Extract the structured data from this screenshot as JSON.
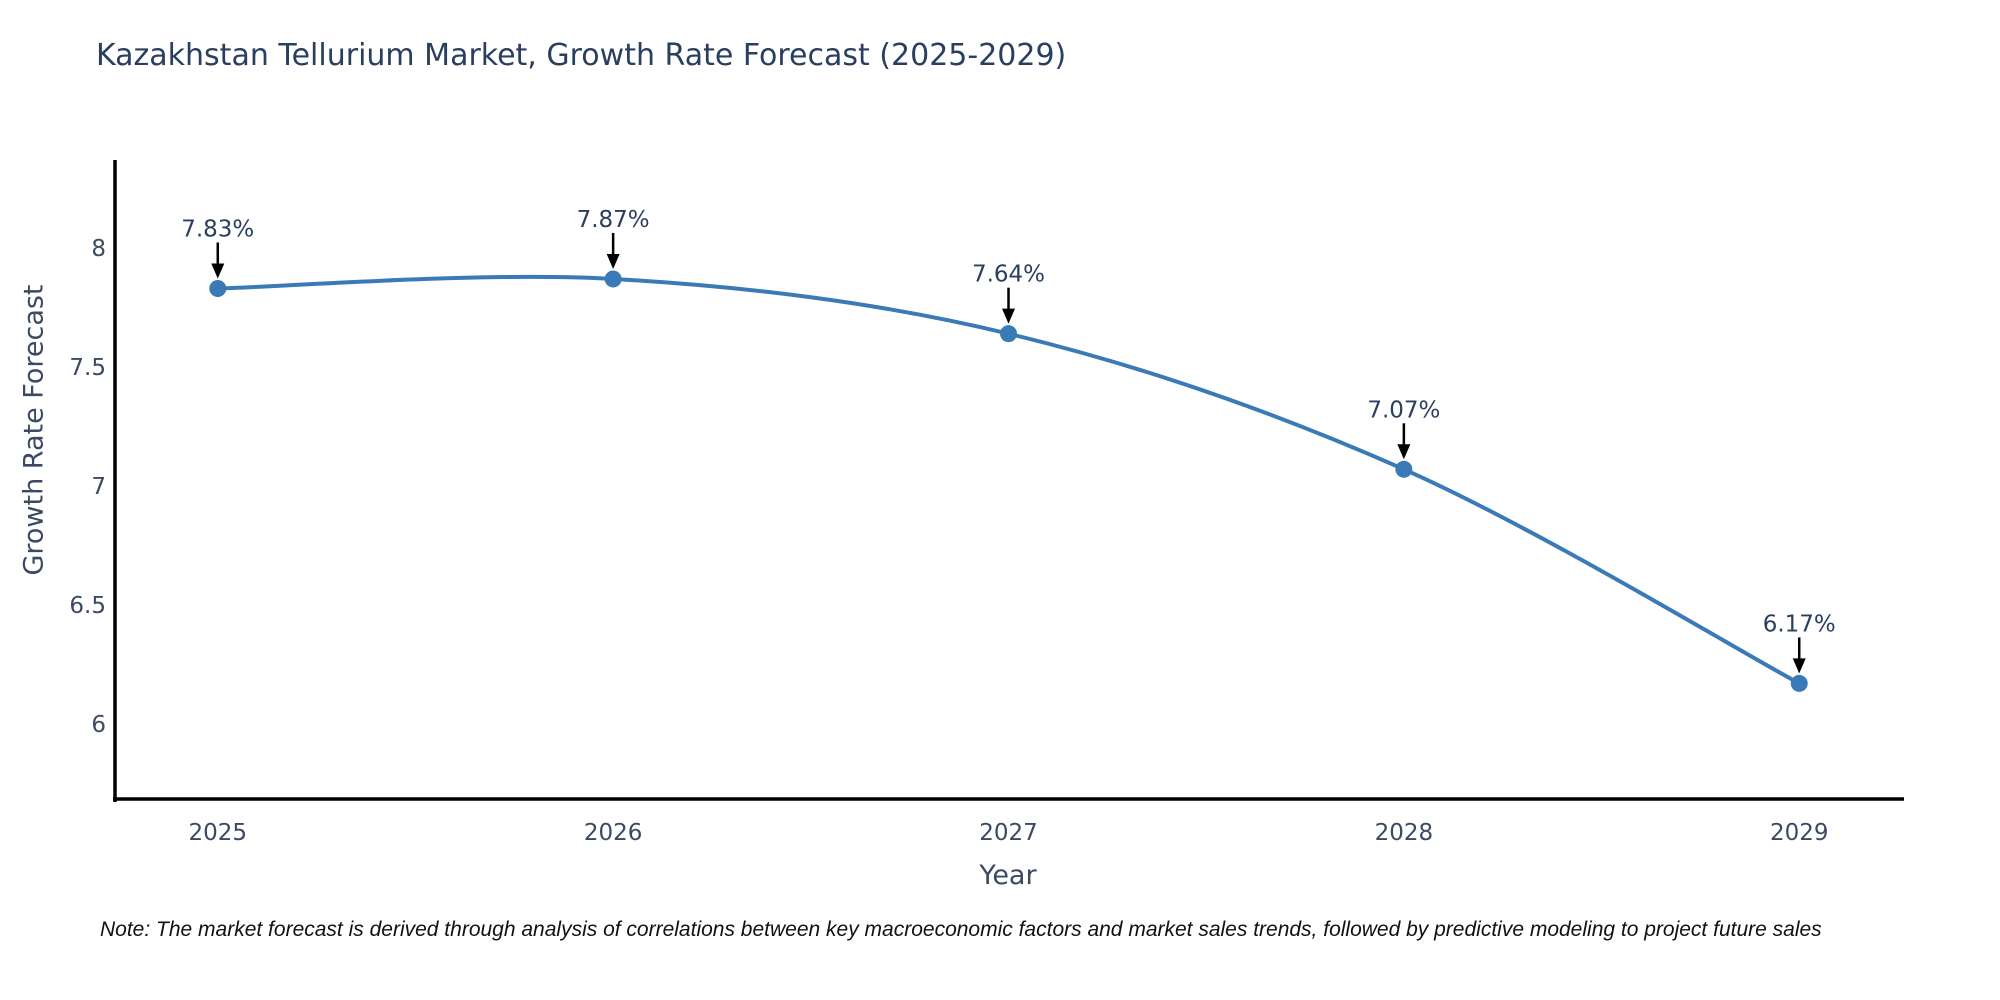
{
  "chart": {
    "title": "Kazakhstan Tellurium Market, Growth Rate Forecast (2025-2029)",
    "note": "Note: The market forecast is derived through analysis of correlations between key macroeconomic factors and market sales trends, followed by predictive modeling to project future sales",
    "colors": {
      "line": "#3a7ab7",
      "marker": "#3a7ab7",
      "axis": "#000000",
      "tick_text": "#3b4a63",
      "annotation_text": "#2a3f5f",
      "arrow": "#000000",
      "title_text": "#2a3f5f",
      "background": "#ffffff"
    }
  },
  "chart_data": {
    "type": "line",
    "title": "Kazakhstan Tellurium Market, Growth Rate Forecast (2025-2029)",
    "xlabel": "Year",
    "ylabel": "Growth Rate Forecast",
    "x": [
      2025,
      2026,
      2027,
      2028,
      2029
    ],
    "values": [
      7.83,
      7.87,
      7.64,
      7.07,
      6.17
    ],
    "labels": [
      "7.83%",
      "7.87%",
      "7.64%",
      "7.07%",
      "6.17%"
    ],
    "xticks": [
      2025,
      2026,
      2027,
      2028,
      2029
    ],
    "xtick_labels": [
      "2025",
      "2026",
      "2027",
      "2028",
      "2029"
    ],
    "yticks": [
      6,
      6.5,
      7,
      7.5,
      8
    ],
    "ytick_labels": [
      "6",
      "6.5",
      "7",
      "7.5",
      "8"
    ],
    "xlim": [
      2024.735,
      2029.265
    ],
    "ylim": [
      5.68,
      8.37
    ],
    "grid": false,
    "legend": "none",
    "line_shape": "spline",
    "marker": "circle",
    "annotations": "value labels with down arrows above each point"
  }
}
